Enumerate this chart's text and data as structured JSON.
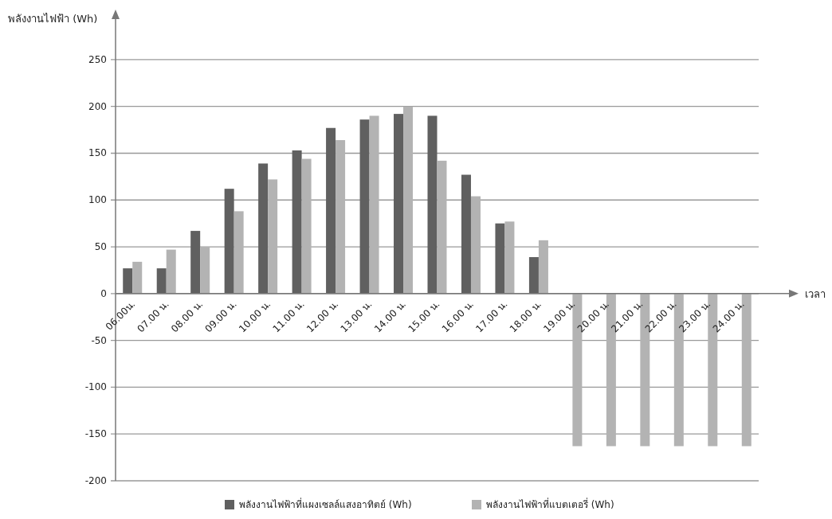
{
  "chart_data": {
    "type": "bar",
    "ylabel": "พลังงานไฟฟ้า (Wh)",
    "xlabel": "เวลา",
    "categories": [
      "06.00น.",
      "07.00 น.",
      "08.00 น.",
      "09.00 น.",
      "10.00 น.",
      "11.00 น.",
      "12.00 น.",
      "13.00 น.",
      "14.00 น.",
      "15.00 น.",
      "16.00 น.",
      "17.00 น.",
      "18.00 น.",
      "19.00 น.",
      "20.00 น.",
      "21.00 น.",
      "22.00 น.",
      "23.00 น.",
      "24.00 น."
    ],
    "series": [
      {
        "name": "พลังงานไฟฟ้าที่แผงเซลล์แสงอาทิตย์ (Wh)",
        "color": "#606060",
        "values": [
          27,
          27,
          67,
          112,
          139,
          153,
          177,
          186,
          192,
          190,
          127,
          75,
          39,
          null,
          null,
          null,
          null,
          null,
          null
        ]
      },
      {
        "name": "พลังงานไฟฟ้าที่แบตเตอรี่ (Wh)",
        "color": "#b3b3b3",
        "values": [
          34,
          47,
          50,
          88,
          122,
          144,
          164,
          190,
          200,
          142,
          104,
          77,
          57,
          -163,
          -163,
          -163,
          -163,
          -163,
          -163
        ]
      }
    ],
    "ylim": [
      -200,
      295
    ],
    "yticks": [
      -200,
      -150,
      -100,
      -50,
      0,
      50,
      100,
      150,
      200,
      250
    ],
    "grid": "y",
    "legend": "bottom"
  }
}
